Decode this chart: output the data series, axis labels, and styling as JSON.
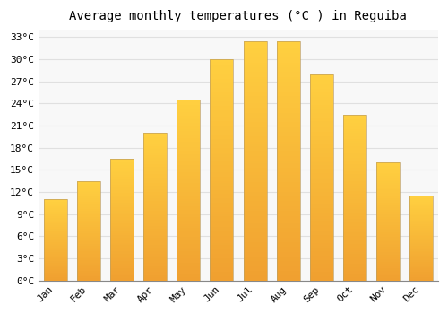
{
  "title": "Average monthly temperatures (°C ) in Reguiba",
  "months": [
    "Jan",
    "Feb",
    "Mar",
    "Apr",
    "May",
    "Jun",
    "Jul",
    "Aug",
    "Sep",
    "Oct",
    "Nov",
    "Dec"
  ],
  "values": [
    11,
    13.5,
    16.5,
    20,
    24.5,
    30,
    32.5,
    32.5,
    28,
    22.5,
    16,
    11.5
  ],
  "bar_color_bottom": "#F0A030",
  "bar_color_top": "#FFD040",
  "bar_edge_color": "#C0A060",
  "ylim": [
    0,
    34
  ],
  "yticks": [
    0,
    3,
    6,
    9,
    12,
    15,
    18,
    21,
    24,
    27,
    30,
    33
  ],
  "ytick_labels": [
    "0°C",
    "3°C",
    "6°C",
    "9°C",
    "12°C",
    "15°C",
    "18°C",
    "21°C",
    "24°C",
    "27°C",
    "30°C",
    "33°C"
  ],
  "background_color": "#ffffff",
  "plot_bg_color": "#f8f8f8",
  "grid_color": "#e0e0e0",
  "title_fontsize": 10,
  "tick_fontsize": 8
}
